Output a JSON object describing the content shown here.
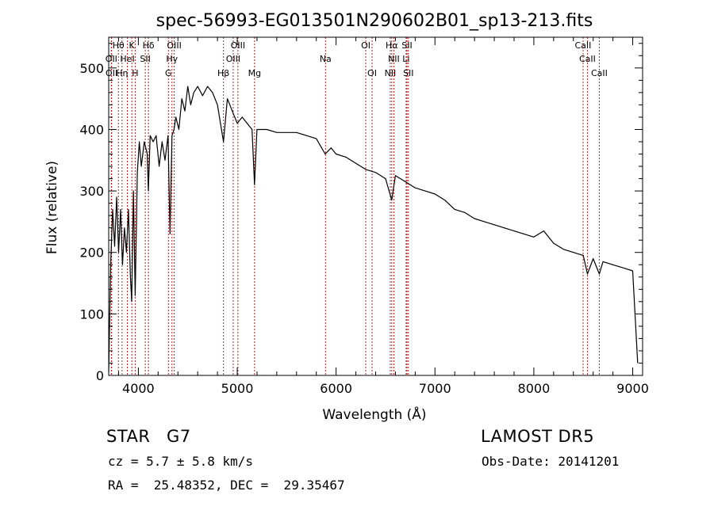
{
  "chart_data": {
    "type": "line",
    "title": "spec-56993-EG013501N290602B01_sp13-213.fits",
    "xlabel": "Wavelength (Å)",
    "ylabel": "Flux (relative)",
    "xlim": [
      3700,
      9100
    ],
    "ylim": [
      0,
      550
    ],
    "x_ticks": [
      4000,
      5000,
      6000,
      7000,
      8000,
      9000
    ],
    "x_tick_labels": [
      "4000",
      "5000",
      "6000",
      "7000",
      "8000",
      "9000"
    ],
    "y_ticks": [
      0,
      100,
      200,
      300,
      400,
      500
    ],
    "y_tick_labels": [
      "0",
      "100",
      "200",
      "300",
      "400",
      "500"
    ],
    "grid": false,
    "line_color": "#000000",
    "marker_color": "#b22222",
    "series": [
      {
        "x": [
          3700,
          3720,
          3740,
          3760,
          3780,
          3800,
          3820,
          3840,
          3860,
          3880,
          3900,
          3920,
          3933,
          3950,
          3968,
          3990,
          4010,
          4030,
          4060,
          4090,
          4101,
          4120,
          4150,
          4180,
          4210,
          4240,
          4270,
          4300,
          4320,
          4340,
          4360,
          4380,
          4410,
          4440,
          4470,
          4500,
          4530,
          4560,
          4600,
          4650,
          4700,
          4750,
          4800,
          4861,
          4900,
          4950,
          5000,
          5050,
          5100,
          5150,
          5175,
          5200,
          5250,
          5300,
          5400,
          5500,
          5600,
          5700,
          5800,
          5890,
          5950,
          6000,
          6100,
          6200,
          6300,
          6400,
          6500,
          6563,
          6600,
          6700,
          6800,
          6900,
          7000,
          7100,
          7200,
          7300,
          7400,
          7500,
          7600,
          7700,
          7800,
          7900,
          8000,
          8100,
          8200,
          8300,
          8400,
          8500,
          8542,
          8600,
          8662,
          8700,
          8800,
          8900,
          9000,
          9050
        ],
        "y": [
          5,
          180,
          270,
          210,
          290,
          200,
          270,
          180,
          240,
          200,
          270,
          160,
          120,
          300,
          130,
          330,
          380,
          340,
          380,
          360,
          300,
          390,
          380,
          390,
          340,
          380,
          350,
          390,
          230,
          390,
          400,
          420,
          400,
          450,
          430,
          470,
          440,
          460,
          470,
          455,
          470,
          460,
          440,
          380,
          450,
          430,
          410,
          420,
          410,
          400,
          310,
          400,
          400,
          400,
          395,
          395,
          395,
          390,
          385,
          360,
          370,
          360,
          355,
          345,
          335,
          330,
          320,
          285,
          325,
          315,
          305,
          300,
          295,
          285,
          270,
          265,
          255,
          250,
          245,
          240,
          235,
          230,
          225,
          235,
          215,
          205,
          200,
          195,
          165,
          190,
          165,
          185,
          180,
          175,
          170,
          20
        ]
      }
    ],
    "spectral_lines": [
      {
        "label": "Hθ",
        "x": 3798,
        "row": 0
      },
      {
        "label": "K",
        "x": 3934,
        "row": 0
      },
      {
        "label": "Hδ",
        "x": 4102,
        "row": 0
      },
      {
        "label": "OIII",
        "x": 4363,
        "row": 0
      },
      {
        "label": "OIII",
        "x": 5007,
        "row": 0
      },
      {
        "label": "OI",
        "x": 6300,
        "row": 0
      },
      {
        "label": "Hα",
        "x": 6563,
        "row": 0
      },
      {
        "label": "SII",
        "x": 6717,
        "row": 0
      },
      {
        "label": "CaII",
        "x": 8498,
        "row": 0
      },
      {
        "label": "OII",
        "x": 3727,
        "row": 1
      },
      {
        "label": "HeI",
        "x": 3889,
        "row": 1
      },
      {
        "label": "SII",
        "x": 4070,
        "row": 1
      },
      {
        "label": "Hγ",
        "x": 4340,
        "row": 1
      },
      {
        "label": "OIII",
        "x": 4959,
        "row": 1
      },
      {
        "label": "Na",
        "x": 5893,
        "row": 1
      },
      {
        "label": "NII",
        "x": 6584,
        "row": 1
      },
      {
        "label": "Li",
        "x": 6708,
        "row": 1
      },
      {
        "label": "CaII",
        "x": 8542,
        "row": 1
      },
      {
        "label": "OII",
        "x": 3729,
        "row": 2
      },
      {
        "label": "Hη",
        "x": 3835,
        "row": 2
      },
      {
        "label": "H",
        "x": 3968,
        "row": 2
      },
      {
        "label": "G",
        "x": 4304,
        "row": 2
      },
      {
        "label": "Hβ",
        "x": 4861,
        "row": 2
      },
      {
        "label": "Mg",
        "x": 5175,
        "row": 2
      },
      {
        "label": "OI",
        "x": 6364,
        "row": 2
      },
      {
        "label": "NII",
        "x": 6548,
        "row": 2
      },
      {
        "label": "SII",
        "x": 6731,
        "row": 2
      },
      {
        "label": "CaII",
        "x": 8662,
        "row": 2
      }
    ]
  },
  "info": {
    "object_type": "STAR",
    "subclass": "G7",
    "survey": "LAMOST DR5",
    "cz": "cz = 5.7 ± 5.8 km/s",
    "obs_date": "Obs-Date: 20141201",
    "coords": "RA =  25.48352, DEC =  29.35467"
  }
}
